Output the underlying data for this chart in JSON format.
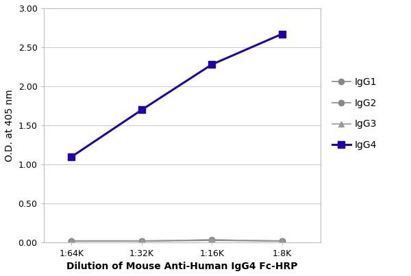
{
  "x_labels": [
    "1:64K",
    "1:32K",
    "1:16K",
    "1:8K"
  ],
  "x_values": [
    1,
    2,
    3,
    4
  ],
  "series": {
    "IgG1": {
      "values": [
        0.02,
        0.02,
        0.03,
        0.02
      ],
      "color": "#888888",
      "marker": "o",
      "linewidth": 1.2,
      "markersize": 6,
      "zorder": 2
    },
    "IgG2": {
      "values": [
        0.025,
        0.025,
        0.035,
        0.025
      ],
      "color": "#888888",
      "marker": "o",
      "linewidth": 1.2,
      "markersize": 6,
      "zorder": 2
    },
    "IgG3": {
      "values": [
        0.02,
        0.02,
        0.04,
        0.02
      ],
      "color": "#999999",
      "marker": "^",
      "linewidth": 1.2,
      "markersize": 6,
      "zorder": 2
    },
    "IgG4": {
      "values": [
        1.1,
        1.7,
        2.28,
        2.67
      ],
      "color": "#2200AA",
      "marker": "s",
      "linewidth": 2.2,
      "markersize": 7,
      "zorder": 3
    }
  },
  "ylabel": "O.D. at 405 nm",
  "xlabel": "Dilution of Mouse Anti-Human IgG4 Fc-HRP",
  "ylim": [
    0.0,
    3.0
  ],
  "yticks": [
    0.0,
    0.5,
    1.0,
    1.5,
    2.0,
    2.5,
    3.0
  ],
  "background_color": "#ffffff",
  "plot_bg_color": "#ffffff",
  "grid_color": "#cccccc",
  "legend_order": [
    "IgG1",
    "IgG2",
    "IgG3",
    "IgG4"
  ],
  "axis_label_fontsize": 10,
  "tick_fontsize": 9,
  "legend_fontsize": 10
}
